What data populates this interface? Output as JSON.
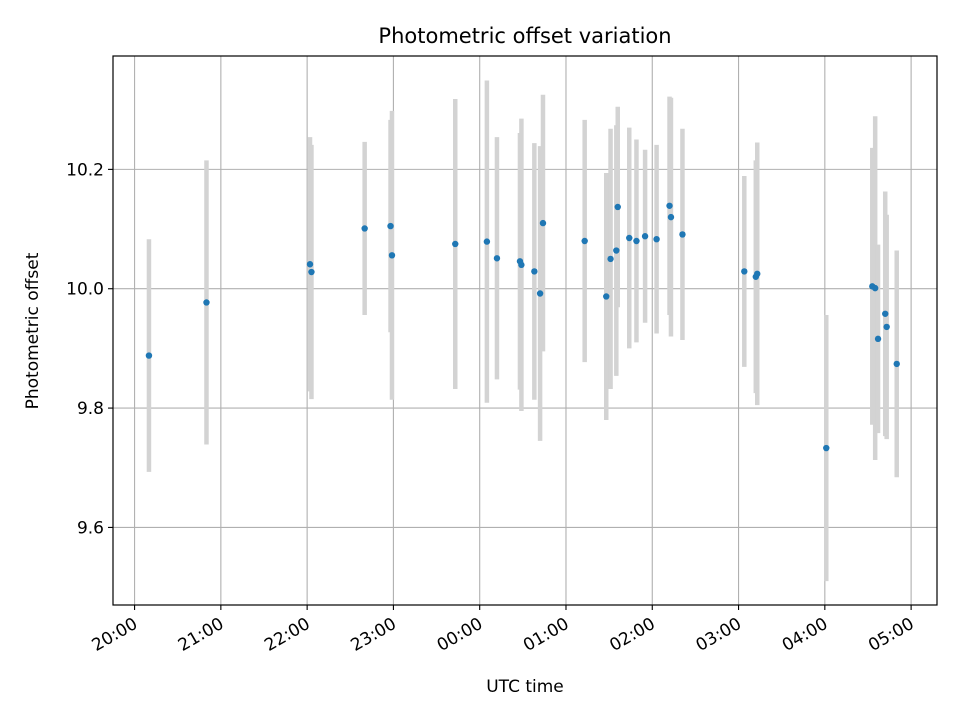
{
  "chart_data": {
    "type": "scatter",
    "title": "Photometric offset variation",
    "xlabel": "UTC time",
    "ylabel": "Photometric offset",
    "grid": true,
    "x_tick_labels": [
      "20:00",
      "21:00",
      "22:00",
      "23:00",
      "00:00",
      "01:00",
      "02:00",
      "03:00",
      "04:00",
      "05:00"
    ],
    "y_ticks": [
      9.6,
      9.8,
      10.0,
      10.2
    ],
    "y_tick_labels": [
      "9.6",
      "9.8",
      "10.0",
      "10.2"
    ],
    "ylim": [
      9.47,
      10.39
    ],
    "xlim": [
      "19:45",
      "05:18"
    ],
    "marker_color": "#1f77b4",
    "errorbar_color": "#d3d3d3",
    "series": [
      {
        "points": [
          {
            "x": "20:10",
            "y": 9.888,
            "err": 0.195
          },
          {
            "x": "20:50",
            "y": 9.977,
            "err": 0.238
          },
          {
            "x": "22:02",
            "y": 10.041,
            "err": 0.213
          },
          {
            "x": "22:03",
            "y": 10.028,
            "err": 0.213
          },
          {
            "x": "22:40",
            "y": 10.101,
            "err": 0.145
          },
          {
            "x": "22:58",
            "y": 10.105,
            "err": 0.178
          },
          {
            "x": "22:59",
            "y": 10.056,
            "err": 0.242
          },
          {
            "x": "23:43",
            "y": 10.075,
            "err": 0.243
          },
          {
            "x": "00:05",
            "y": 10.079,
            "err": 0.27
          },
          {
            "x": "00:12",
            "y": 10.051,
            "err": 0.203
          },
          {
            "x": "00:28",
            "y": 10.046,
            "err": 0.215
          },
          {
            "x": "00:29",
            "y": 10.04,
            "err": 0.245
          },
          {
            "x": "00:38",
            "y": 10.029,
            "err": 0.215
          },
          {
            "x": "00:42",
            "y": 9.992,
            "err": 0.247
          },
          {
            "x": "00:44",
            "y": 10.11,
            "err": 0.215
          },
          {
            "x": "01:13",
            "y": 10.08,
            "err": 0.203
          },
          {
            "x": "01:28",
            "y": 9.987,
            "err": 0.207
          },
          {
            "x": "01:31",
            "y": 10.05,
            "err": 0.218
          },
          {
            "x": "01:35",
            "y": 10.064,
            "err": 0.21
          },
          {
            "x": "01:36",
            "y": 10.137,
            "err": 0.168
          },
          {
            "x": "01:44",
            "y": 10.085,
            "err": 0.185
          },
          {
            "x": "01:49",
            "y": 10.08,
            "err": 0.17
          },
          {
            "x": "01:55",
            "y": 10.088,
            "err": 0.145
          },
          {
            "x": "02:03",
            "y": 10.083,
            "err": 0.158
          },
          {
            "x": "02:12",
            "y": 10.139,
            "err": 0.183
          },
          {
            "x": "02:13",
            "y": 10.12,
            "err": 0.2
          },
          {
            "x": "02:21",
            "y": 10.091,
            "err": 0.177
          },
          {
            "x": "03:04",
            "y": 10.029,
            "err": 0.16
          },
          {
            "x": "03:12",
            "y": 10.02,
            "err": 0.195
          },
          {
            "x": "03:13",
            "y": 10.025,
            "err": 0.22
          },
          {
            "x": "04:01",
            "y": 9.733,
            "err": 0.223
          },
          {
            "x": "04:33",
            "y": 10.004,
            "err": 0.232
          },
          {
            "x": "04:35",
            "y": 10.001,
            "err": 0.288
          },
          {
            "x": "04:37",
            "y": 9.916,
            "err": 0.158
          },
          {
            "x": "04:42",
            "y": 9.958,
            "err": 0.205
          },
          {
            "x": "04:43",
            "y": 9.936,
            "err": 0.188
          },
          {
            "x": "04:50",
            "y": 9.874,
            "err": 0.19
          }
        ]
      }
    ]
  }
}
